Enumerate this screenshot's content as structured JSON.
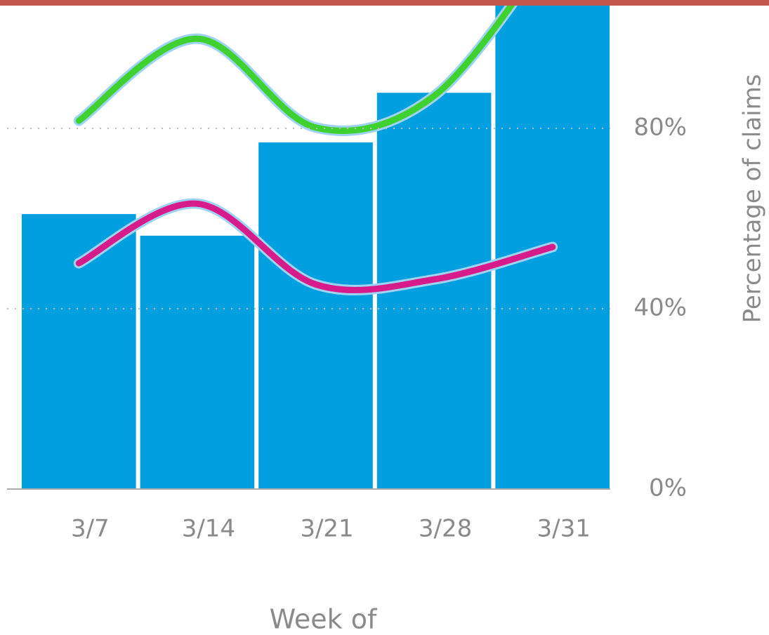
{
  "chart_data": {
    "type": "bar",
    "categories": [
      "3/7",
      "3/14",
      "3/21",
      "3/28",
      "3/31"
    ],
    "series": [
      {
        "type": "bar",
        "color": "#009fe0",
        "values": [
          61.0,
          56.2,
          76.9,
          87.9,
          110
        ]
      },
      {
        "type": "line",
        "color": "#3fd12f",
        "values": [
          81.7,
          99.9,
          80.2,
          87.2,
          120
        ]
      },
      {
        "type": "line",
        "color": "#d81b8a",
        "values": [
          50.1,
          63.3,
          45.4,
          46.5,
          53.7
        ]
      }
    ],
    "ylim": [
      0,
      107
    ],
    "yticks": [
      {
        "value": 0,
        "label": "0%"
      },
      {
        "value": 40,
        "label": "40%"
      },
      {
        "value": 80,
        "label": "80%"
      }
    ],
    "ylabel": "Percentage of claims",
    "xlabel": "Week of",
    "grid": true
  }
}
